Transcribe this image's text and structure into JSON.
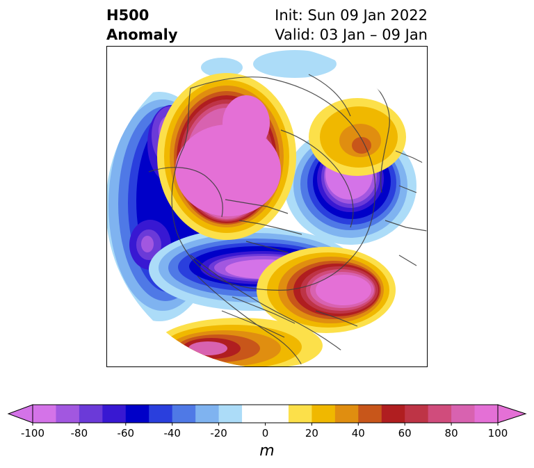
{
  "header": {
    "title_line1": "H500",
    "title_line2": "Anomaly",
    "init_text": "Init: Sun 09 Jan 2022",
    "valid_text": "Valid: 03 Jan – 09 Jan"
  },
  "colorbar": {
    "unit": "m",
    "tick_labels": [
      "-100",
      "-80",
      "-60",
      "-40",
      "-20",
      "0",
      "20",
      "40",
      "60",
      "80",
      "100"
    ],
    "tick_values": [
      -100,
      -80,
      -60,
      -40,
      -20,
      0,
      20,
      40,
      60,
      80,
      100
    ],
    "range": [
      -100,
      100
    ],
    "step": 10,
    "extend": "both",
    "colors": [
      "#d473e8",
      "#a257e0",
      "#6b3ad8",
      "#3818d2",
      "#0000c8",
      "#2a3fdd",
      "#4f79e6",
      "#7fb3f0",
      "#acdcf8",
      "#ffffff",
      "#ffffff",
      "#fce04a",
      "#f0b800",
      "#e08e10",
      "#c8561a",
      "#b01e20",
      "#be3446",
      "#d04c7c",
      "#d862b0",
      "#e470d6"
    ],
    "under_color": "#d473e8",
    "over_color": "#e470d6"
  }
}
